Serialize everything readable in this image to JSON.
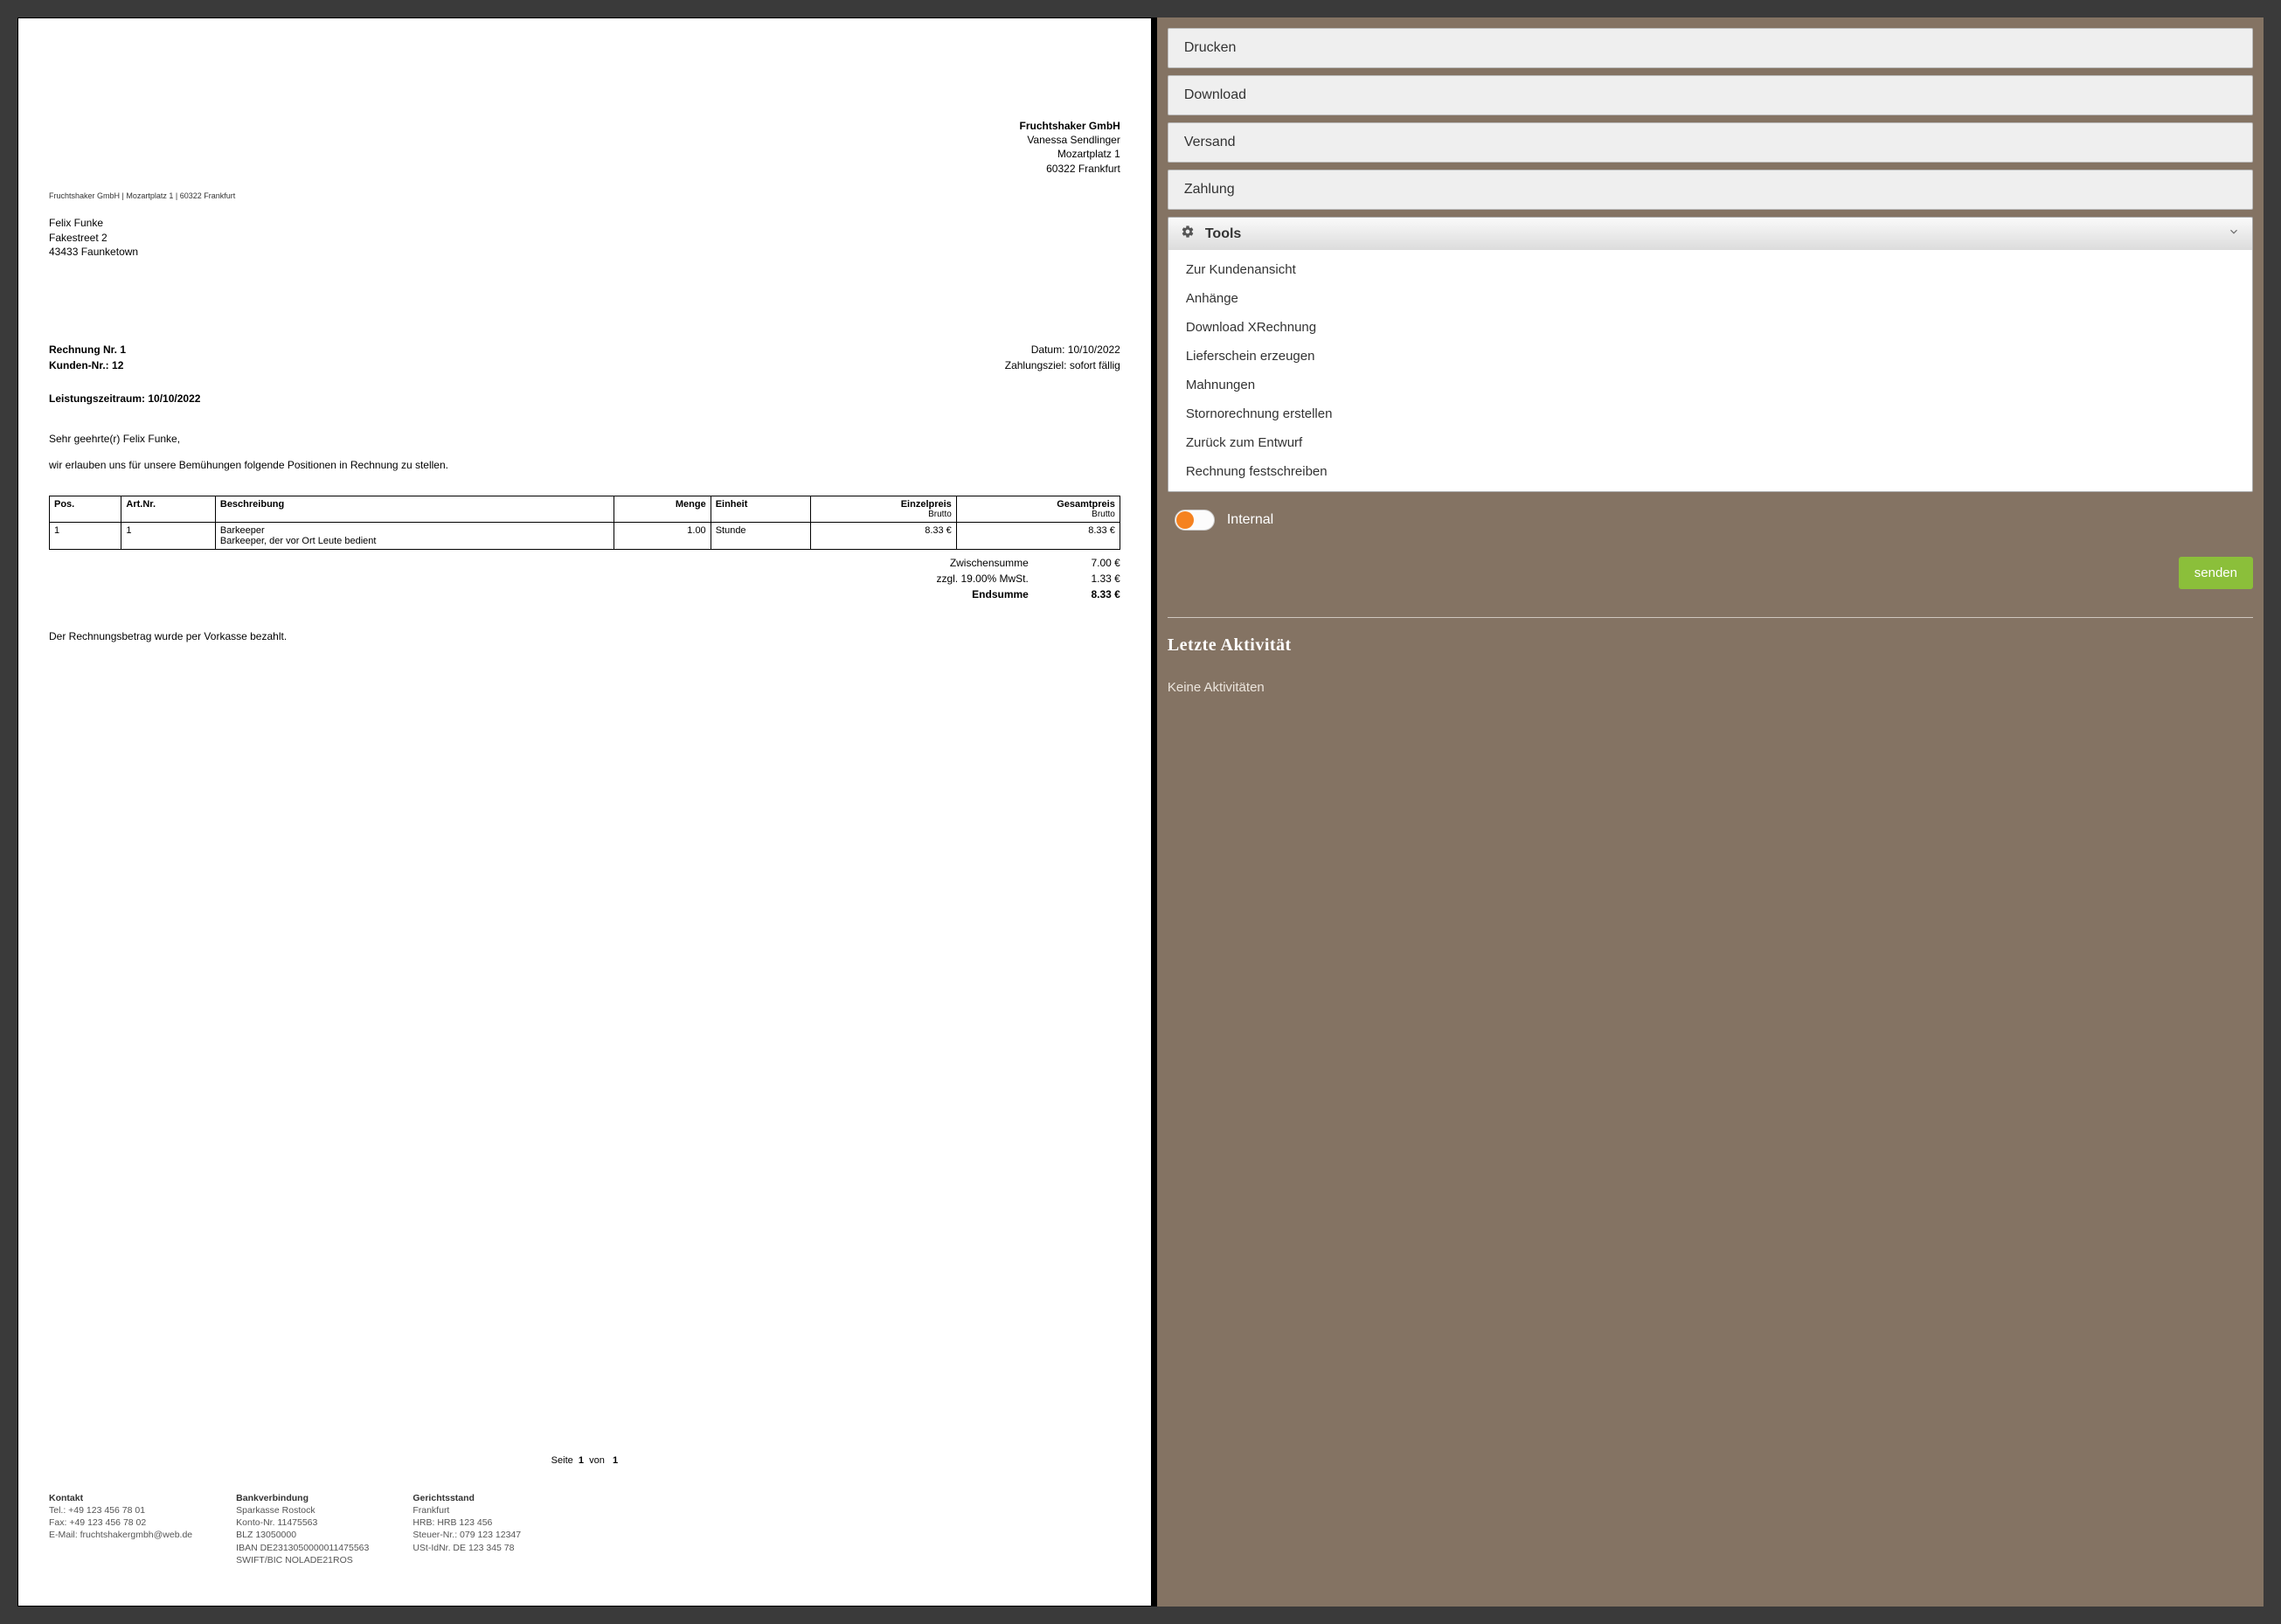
{
  "colors": {
    "page_bg": "#3a3a3a",
    "doc_bg": "#ffffff",
    "side_bg": "#847363",
    "accordion_bg": "#efefef",
    "accordion_text": "#333333",
    "tools_gradient_top": "#fafafa",
    "tools_gradient_bottom": "#dcdcdc",
    "tool_item_text": "#333333",
    "toggle_knob": "#f58220",
    "send_btn_bg": "#8bbf3a",
    "send_btn_text": "#ffffff",
    "side_text": "#ffffff",
    "footer_text": "#555555",
    "hr": "#cfc7bf"
  },
  "document": {
    "company": {
      "name": "Fruchtshaker GmbH",
      "contact": "Vanessa Sendlinger",
      "street": "Mozartplatz 1",
      "city": "60322 Frankfurt"
    },
    "sender_line": "Fruchtshaker GmbH | Mozartplatz 1 | 60322 Frankfurt",
    "recipient": {
      "name": "Felix Funke",
      "street": "Fakestreet 2",
      "city": "43433 Faunketown"
    },
    "meta_left": {
      "invoice_label": "Rechnung Nr.",
      "invoice_no": "1",
      "customer_label": "Kunden-Nr.:",
      "customer_no": "12"
    },
    "meta_right": {
      "date_label": "Datum:",
      "date": "10/10/2022",
      "due_label": "Zahlungsziel:",
      "due": "sofort fällig"
    },
    "period_label": "Leistungszeitraum:",
    "period_value": "10/10/2022",
    "salutation": "Sehr geehrte(r) Felix Funke,",
    "intro": "wir erlauben uns für unsere Bemühungen folgende Positionen in Rechnung zu stellen.",
    "table": {
      "headers": {
        "pos": "Pos.",
        "artnr": "Art.Nr.",
        "desc": "Beschreibung",
        "qty": "Menge",
        "unit": "Einheit",
        "unitprice": "Einzelpreis",
        "unitprice_sub": "Brutto",
        "total": "Gesamtpreis",
        "total_sub": "Brutto"
      },
      "rows": [
        {
          "pos": "1",
          "artnr": "1",
          "desc_title": "Barkeeper",
          "desc_body": "Barkeeper, der vor Ort Leute bedient",
          "qty": "1.00",
          "unit": "Stunde",
          "unitprice": "8.33 €",
          "total": "8.33 €"
        }
      ]
    },
    "totals": {
      "subtotal_label": "Zwischensumme",
      "subtotal": "7.00 €",
      "vat_label": "zzgl. 19.00% MwSt.",
      "vat": "1.33 €",
      "grand_label": "Endsumme",
      "grand": "8.33 €"
    },
    "payment_note": "Der Rechnungsbetrag wurde per Vorkasse bezahlt.",
    "pagination": {
      "prefix": "Seite",
      "current": "1",
      "sep": "von",
      "total": "1"
    },
    "footer": {
      "contact": {
        "title": "Kontakt",
        "tel": "Tel.: +49 123 456 78 01",
        "fax": "Fax: +49 123 456 78 02",
        "email": "E-Mail: fruchtshakergmbh@web.de"
      },
      "bank": {
        "title": "Bankverbindung",
        "bank": "Sparkasse Rostock",
        "konto": "Konto-Nr. 11475563",
        "blz": "BLZ 13050000",
        "iban": "IBAN DE2313050000011475563",
        "bic": "SWIFT/BIC NOLADE21ROS"
      },
      "legal": {
        "title": "Gerichtsstand",
        "city": "Frankfurt",
        "hrb": "HRB: HRB 123 456",
        "taxno": "Steuer-Nr.: 079 123 12347",
        "vatid": "USt-IdNr. DE 123 345 78"
      }
    }
  },
  "side": {
    "accordions": {
      "print": "Drucken",
      "download": "Download",
      "shipping": "Versand",
      "payment": "Zahlung"
    },
    "tools": {
      "title": "Tools",
      "items": {
        "customer_view": "Zur Kundenansicht",
        "attachments": "Anhänge",
        "xrechnung": "Download XRechnung",
        "delivery_note": "Lieferschein erzeugen",
        "reminders": "Mahnungen",
        "cancel_invoice": "Stornorechnung erstellen",
        "back_to_draft": "Zurück zum Entwurf",
        "finalize": "Rechnung festschreiben"
      }
    },
    "toggle_label": "Internal",
    "send_label": "senden",
    "activity_title": "Letzte Aktivität",
    "activity_none": "Keine Aktivitäten"
  }
}
